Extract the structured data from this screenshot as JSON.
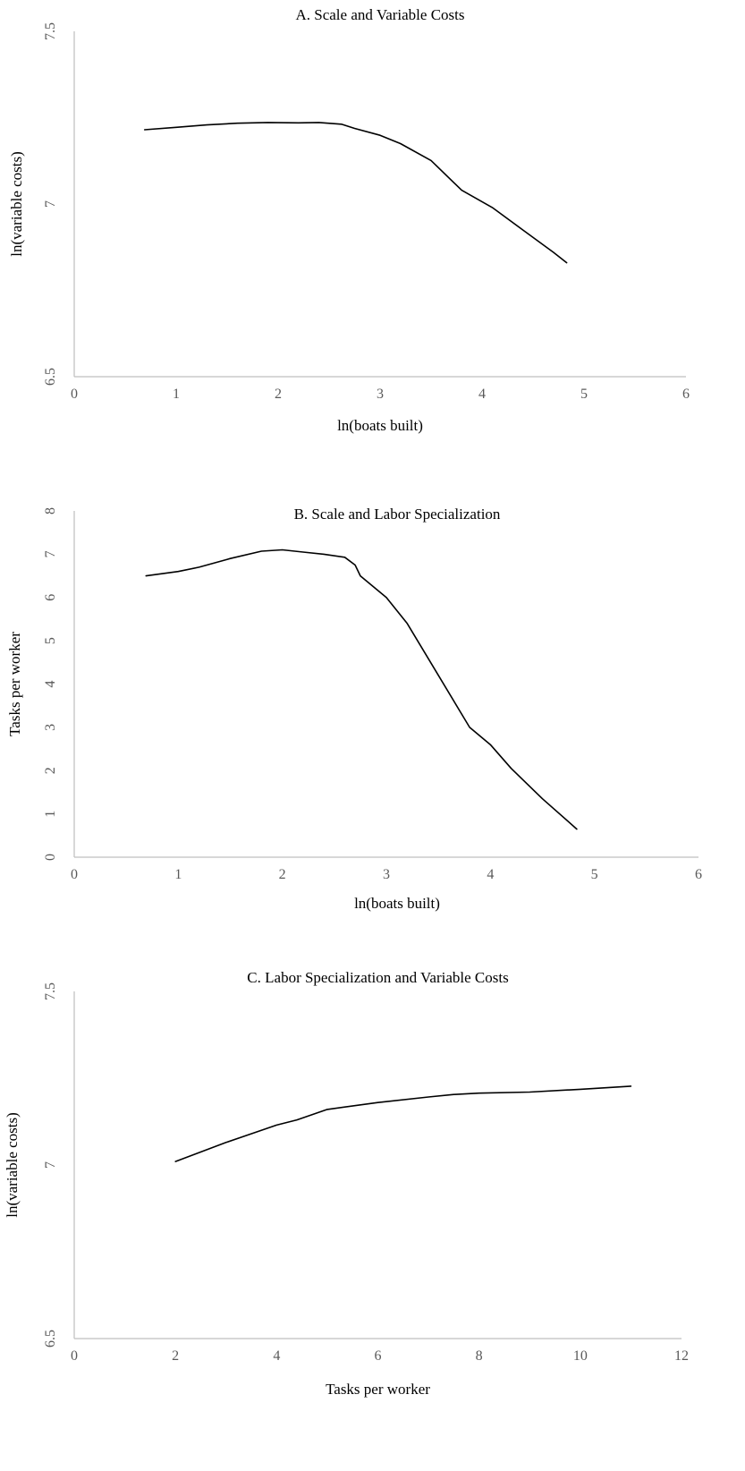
{
  "chart_data": [
    {
      "type": "line",
      "title": "A. Scale and Variable Costs",
      "xlabel": "ln(boats built)",
      "ylabel": "ln(variable costs)",
      "xlim": [
        0,
        6
      ],
      "ylim": [
        6.5,
        7.5
      ],
      "x_ticks": [
        "0",
        "1",
        "2",
        "3",
        "4",
        "5",
        "6"
      ],
      "y_ticks": [
        "6.5",
        "7",
        "7.5"
      ],
      "grid": false,
      "series": [
        {
          "x": [
            0.69,
            1.0,
            1.3,
            1.6,
            1.9,
            2.2,
            2.4,
            2.62,
            2.75,
            3.0,
            3.2,
            3.5,
            3.8,
            4.1,
            4.4,
            4.7,
            4.83
          ],
          "y": [
            7.215,
            7.222,
            7.229,
            7.234,
            7.236,
            7.235,
            7.236,
            7.231,
            7.219,
            7.199,
            7.175,
            7.126,
            7.04,
            6.99,
            6.925,
            6.86,
            6.83
          ]
        }
      ]
    },
    {
      "type": "line",
      "title": "B. Scale and Labor Specialization",
      "xlabel": "ln(boats built)",
      "ylabel": "Tasks per worker",
      "xlim": [
        0,
        6
      ],
      "ylim": [
        0,
        8
      ],
      "x_ticks": [
        "0",
        "1",
        "2",
        "3",
        "4",
        "5",
        "6"
      ],
      "y_ticks": [
        "0",
        "1",
        "2",
        "3",
        "4",
        "5",
        "6",
        "7",
        "8"
      ],
      "grid": false,
      "series": [
        {
          "x": [
            0.69,
            1.0,
            1.2,
            1.5,
            1.8,
            2.0,
            2.2,
            2.4,
            2.6,
            2.7,
            2.75,
            3.0,
            3.2,
            3.5,
            3.8,
            4.0,
            4.2,
            4.5,
            4.83
          ],
          "y": [
            6.5,
            6.6,
            6.7,
            6.9,
            7.07,
            7.1,
            7.05,
            7.0,
            6.93,
            6.75,
            6.5,
            6.0,
            5.4,
            4.2,
            3.0,
            2.6,
            2.05,
            1.35,
            0.65
          ]
        }
      ]
    },
    {
      "type": "line",
      "title": "C. Labor Specialization and Variable Costs",
      "xlabel": "Tasks per worker",
      "ylabel": "ln(variable costs)",
      "xlim": [
        0,
        12
      ],
      "ylim": [
        6.5,
        7.5
      ],
      "x_ticks": [
        "0",
        "2",
        "4",
        "6",
        "8",
        "10",
        "12"
      ],
      "y_ticks": [
        "6.5",
        "7",
        "7.5"
      ],
      "grid": false,
      "series": [
        {
          "x": [
            2.0,
            3.0,
            4.0,
            4.4,
            5.0,
            6.0,
            7.0,
            7.5,
            8.0,
            9.0,
            10.0,
            11.0
          ],
          "y": [
            7.01,
            7.065,
            7.115,
            7.13,
            7.16,
            7.18,
            7.196,
            7.203,
            7.207,
            7.21,
            7.218,
            7.227
          ]
        }
      ]
    }
  ]
}
